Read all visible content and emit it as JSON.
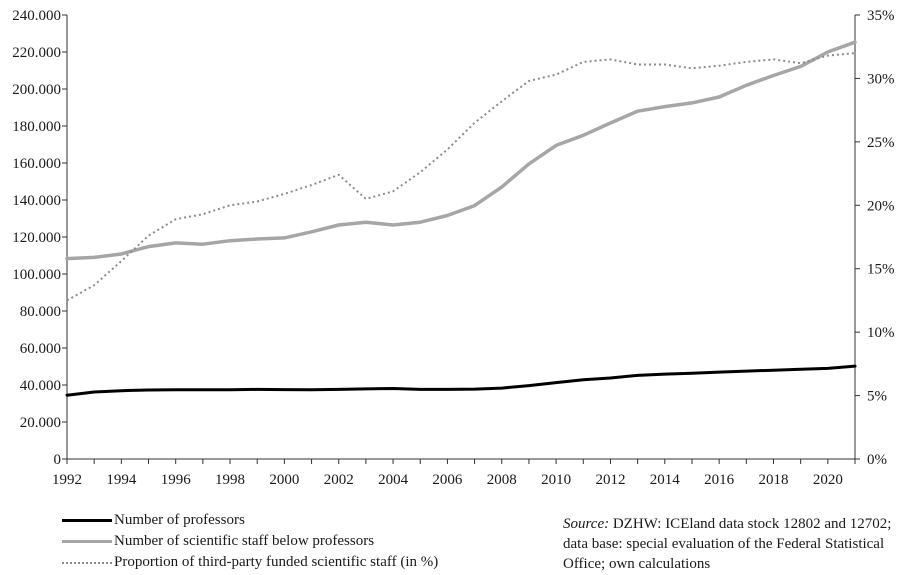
{
  "chart_data": {
    "type": "line",
    "x": [
      1992,
      1993,
      1994,
      1995,
      1996,
      1997,
      1998,
      1999,
      2000,
      2001,
      2002,
      2003,
      2004,
      2005,
      2006,
      2007,
      2008,
      2009,
      2010,
      2011,
      2012,
      2013,
      2014,
      2015,
      2016,
      2017,
      2018,
      2019,
      2020,
      2021
    ],
    "x_ticks": [
      "1992",
      "1994",
      "1996",
      "1998",
      "2000",
      "2002",
      "2004",
      "2006",
      "2008",
      "2010",
      "2012",
      "2014",
      "2016",
      "2018",
      "2020"
    ],
    "y_left_ticks": [
      "0",
      "20.000",
      "40.000",
      "60.000",
      "80.000",
      "100.000",
      "120.000",
      "140.000",
      "160.000",
      "180.000",
      "200.000",
      "220.000",
      "240.000"
    ],
    "y_right_ticks": [
      "0%",
      "5%",
      "10%",
      "15%",
      "20%",
      "25%",
      "30%",
      "35%"
    ],
    "ylim_left": [
      0,
      240000
    ],
    "ylim_right": [
      0,
      35
    ],
    "grid": false,
    "legend_position": "bottom-left",
    "series": [
      {
        "name": "Number of professors",
        "axis": "left",
        "color": "#000000",
        "style": "solid",
        "values": [
          34500,
          36200,
          36900,
          37300,
          37400,
          37400,
          37400,
          37600,
          37500,
          37400,
          37600,
          37900,
          38100,
          37600,
          37600,
          37800,
          38300,
          39700,
          41300,
          42800,
          43800,
          45200,
          45900,
          46400,
          47000,
          47500,
          48000,
          48500,
          49000,
          50200
        ]
      },
      {
        "name": "Number of scientific staff below professors",
        "axis": "left",
        "color": "#a6a6a6",
        "style": "solid",
        "values": [
          108300,
          109000,
          110800,
          114800,
          116800,
          116100,
          118000,
          118900,
          119500,
          122800,
          126500,
          128000,
          126500,
          128000,
          131600,
          137000,
          147000,
          159500,
          169500,
          175000,
          181600,
          188000,
          190500,
          192500,
          195700,
          202000,
          207300,
          212200,
          220000,
          225300
        ]
      },
      {
        "name": "Proportion of third-party funded scientific staff (in %)",
        "axis": "right",
        "color": "#8c8c8c",
        "style": "dotted",
        "values": [
          12.5,
          13.7,
          15.6,
          17.6,
          18.9,
          19.3,
          20.0,
          20.3,
          20.9,
          21.6,
          22.4,
          20.5,
          21.1,
          22.6,
          24.4,
          26.5,
          28.2,
          29.8,
          30.3,
          31.3,
          31.5,
          31.1,
          31.1,
          30.8,
          31.0,
          31.3,
          31.5,
          31.2,
          31.8,
          32.0
        ]
      }
    ]
  },
  "legend": {
    "items": [
      {
        "label": "Number of professors"
      },
      {
        "label": "Number of scientific staff below professors"
      },
      {
        "label": "Proportion of third-party funded scientific staff (in %)"
      }
    ]
  },
  "source": {
    "prefix": "Source:",
    "text": "DZHW: ICEland data stock 12802 and 12702; data base: special evaluation of the Federal Statistical Office; own calculations"
  }
}
